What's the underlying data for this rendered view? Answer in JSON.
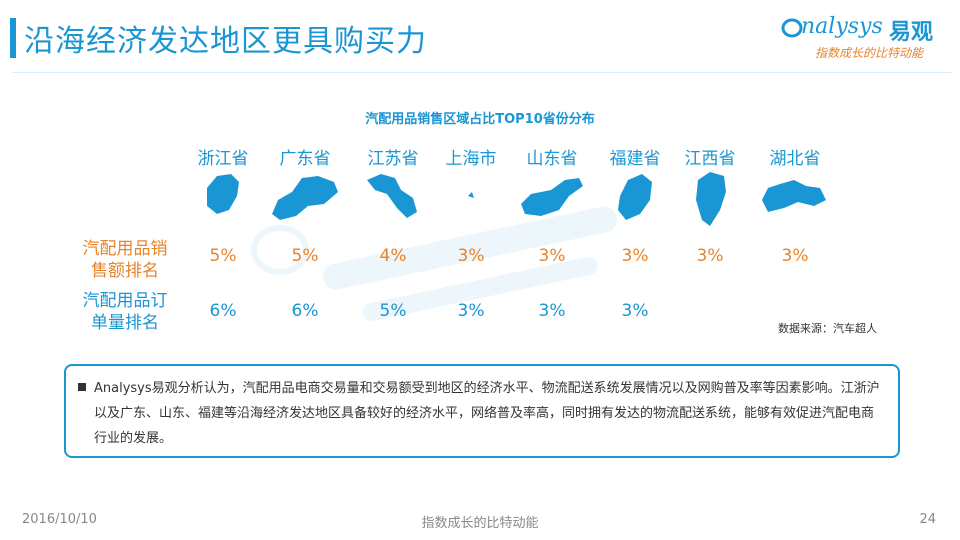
{
  "header": {
    "title": "沿海经济发达地区更具购买力",
    "logo_brand": "nalysys",
    "logo_cn": "易观",
    "logo_tagline": "指数成长的比特动能"
  },
  "chart_data": {
    "type": "table",
    "title": "汽配用品销售区域占比TOP10省份分布",
    "categories": [
      "浙江省",
      "广东省",
      "江苏省",
      "上海市",
      "山东省",
      "福建省",
      "江西省",
      "湖北省"
    ],
    "series": [
      {
        "name": "汽配用品销售额排名",
        "values": [
          "5%",
          "5%",
          "4%",
          "3%",
          "3%",
          "3%",
          "3%",
          "3%"
        ]
      },
      {
        "name": "汽配用品订单量排名",
        "values": [
          "6%",
          "6%",
          "5%",
          "3%",
          "3%",
          "3%",
          "",
          ""
        ]
      }
    ],
    "row_labels": [
      {
        "line1": "汽配用品销",
        "line2": "售额排名"
      },
      {
        "line1": "汽配用品订",
        "line2": "单量排名"
      }
    ],
    "source": "数据来源：汽车超人"
  },
  "colors": {
    "accent": "#1a96d4",
    "orange": "#e8832a",
    "map": "#1a96d4"
  },
  "note": {
    "text": "Analysys易观分析认为，汽配用品电商交易量和交易额受到地区的经济水平、物流配送系统发展情况以及网购普及率等因素影响。江浙沪以及广东、山东、福建等沿海经济发达地区具备较好的经济水平，网络普及率高，同时拥有发达的物流配送系统，能够有效促进汽配电商行业的发展。"
  },
  "footer": {
    "date": "2016/10/10",
    "center": "指数成长的比特动能",
    "page": "24"
  }
}
